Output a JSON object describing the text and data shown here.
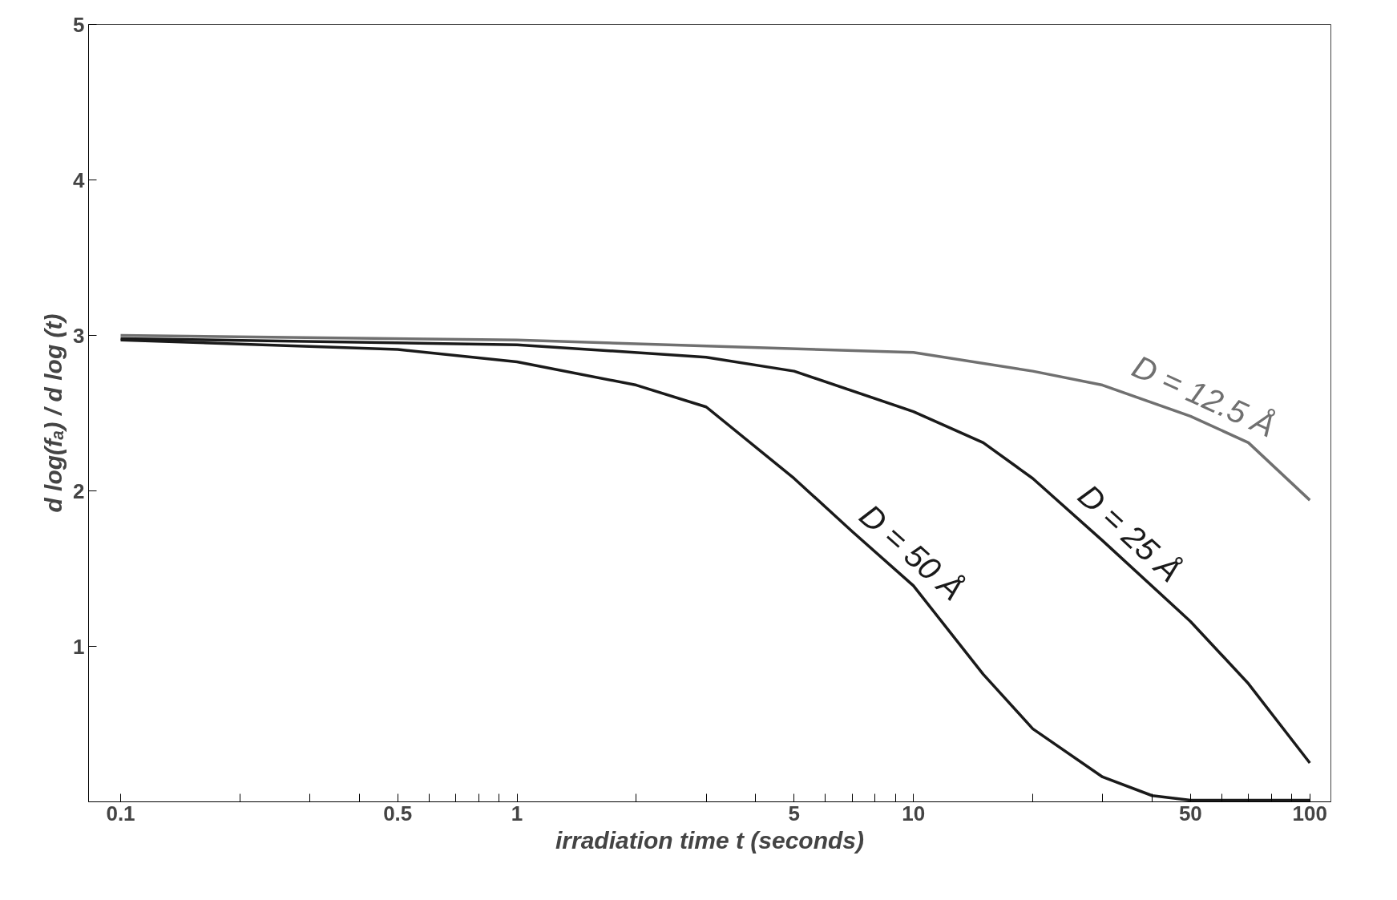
{
  "chart_data": {
    "type": "line",
    "xlabel": "irradiation time t (seconds)",
    "ylabel": "d log(fₐ) / d log (t)",
    "log": "x",
    "grid": false,
    "legend": false,
    "marker": "none",
    "line_style": "solid",
    "xlim": [
      0.083,
      113
    ],
    "ylim": [
      0,
      5
    ],
    "xticks": [
      0.1,
      {
        "value": 0.2,
        "label": null
      },
      {
        "value": 0.3,
        "label": null
      },
      {
        "value": 0.4,
        "label": null
      },
      0.5,
      {
        "value": 0.6,
        "label": null
      },
      {
        "value": 0.7,
        "label": null
      },
      {
        "value": 0.8,
        "label": null
      },
      {
        "value": 0.9,
        "label": null
      },
      1,
      {
        "value": 2,
        "label": null
      },
      {
        "value": 3,
        "label": null
      },
      {
        "value": 4,
        "label": null
      },
      5,
      {
        "value": 6,
        "label": null
      },
      {
        "value": 7,
        "label": null
      },
      {
        "value": 8,
        "label": null
      },
      {
        "value": 9,
        "label": null
      },
      10,
      {
        "value": 20,
        "label": null
      },
      {
        "value": 30,
        "label": null
      },
      {
        "value": 40,
        "label": null
      },
      50,
      {
        "value": 60,
        "label": null
      },
      {
        "value": 70,
        "label": null
      },
      {
        "value": 80,
        "label": null
      },
      {
        "value": 90,
        "label": null
      },
      100
    ],
    "yticks": [
      1,
      2,
      3,
      4,
      5
    ],
    "series": [
      {
        "name": "D = 12.5 Å",
        "color": "#707070",
        "x": [
          0.1,
          1,
          10,
          20,
          30,
          50,
          70,
          100
        ],
        "values": [
          3.0,
          2.97,
          2.89,
          2.77,
          2.68,
          2.48,
          2.31,
          1.94
        ]
      },
      {
        "name": "D = 25 Å",
        "color": "#1a1a1a",
        "x": [
          0.1,
          1,
          3,
          5,
          10,
          15,
          20,
          30,
          50,
          70,
          100
        ],
        "values": [
          2.98,
          2.94,
          2.86,
          2.77,
          2.51,
          2.31,
          2.08,
          1.68,
          1.16,
          0.76,
          0.25
        ]
      },
      {
        "name": "D = 50 Å",
        "color": "#1a1a1a",
        "x": [
          0.1,
          0.5,
          1,
          2,
          3,
          5,
          7,
          10,
          15,
          20,
          30,
          40,
          50,
          100
        ],
        "values": [
          2.97,
          2.91,
          2.83,
          2.68,
          2.54,
          2.08,
          1.74,
          1.39,
          0.82,
          0.47,
          0.16,
          0.04,
          0.01,
          0.01
        ]
      }
    ]
  }
}
